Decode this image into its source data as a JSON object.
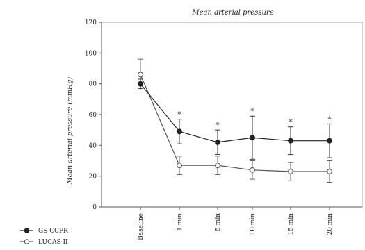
{
  "chart_data": {
    "type": "line",
    "title": "Mean arterial pressure",
    "xlabel": "",
    "ylabel": "Mean arterial pressure (mmHg)",
    "ylim": [
      0,
      120
    ],
    "yticks": [
      0,
      20,
      40,
      60,
      80,
      100,
      120
    ],
    "categories": [
      "Baseline",
      "1 min",
      "5 min",
      "10 min",
      "15 min",
      "20 min"
    ],
    "significance_marker": "*",
    "significant_points": [
      1,
      2,
      3,
      4,
      5
    ],
    "grid": false,
    "legend_position": "bottom-left",
    "series": [
      {
        "name": "GS CCPR",
        "marker": "filled-circle",
        "color": "#222222",
        "values": [
          80,
          49,
          42,
          45,
          43,
          43
        ],
        "errors": [
          3,
          8,
          8,
          14,
          9,
          11
        ]
      },
      {
        "name": "LUCAS II",
        "marker": "open-circle",
        "color": "#555555",
        "values": [
          86,
          27,
          27,
          24,
          23,
          23
        ],
        "errors": [
          10,
          6,
          6,
          6,
          6,
          7
        ]
      }
    ]
  }
}
